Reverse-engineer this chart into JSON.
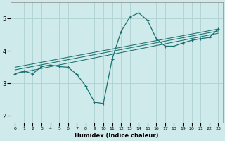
{
  "xlabel": "Humidex (Indice chaleur)",
  "bg_color": "#ceeaea",
  "grid_color": "#aed0d0",
  "line_color": "#1a7070",
  "xlim": [
    -0.5,
    23.5
  ],
  "ylim": [
    1.8,
    5.5
  ],
  "xticks": [
    0,
    1,
    2,
    3,
    4,
    5,
    6,
    7,
    8,
    9,
    10,
    11,
    12,
    13,
    14,
    15,
    16,
    17,
    18,
    19,
    20,
    21,
    22,
    23
  ],
  "yticks": [
    2,
    3,
    4,
    5
  ],
  "curve1_x": [
    0,
    1,
    2,
    3,
    4,
    5,
    6,
    7,
    8,
    9,
    10,
    11,
    12,
    13,
    14,
    15,
    16,
    17,
    18,
    19,
    20,
    21,
    22,
    23
  ],
  "curve1_y": [
    3.3,
    3.38,
    3.3,
    3.52,
    3.57,
    3.52,
    3.5,
    3.28,
    2.92,
    2.42,
    2.38,
    3.75,
    4.6,
    5.05,
    5.18,
    4.95,
    4.38,
    4.15,
    4.15,
    4.25,
    4.33,
    4.38,
    4.42,
    4.68
  ],
  "line1_x": [
    0,
    23
  ],
  "line1_y": [
    3.3,
    4.55
  ],
  "line2_x": [
    0,
    23
  ],
  "line2_y": [
    3.42,
    4.62
  ],
  "line3_x": [
    0,
    23
  ],
  "line3_y": [
    3.5,
    4.68
  ],
  "xlabel_fontsize": 6,
  "tick_fontsize": 5
}
